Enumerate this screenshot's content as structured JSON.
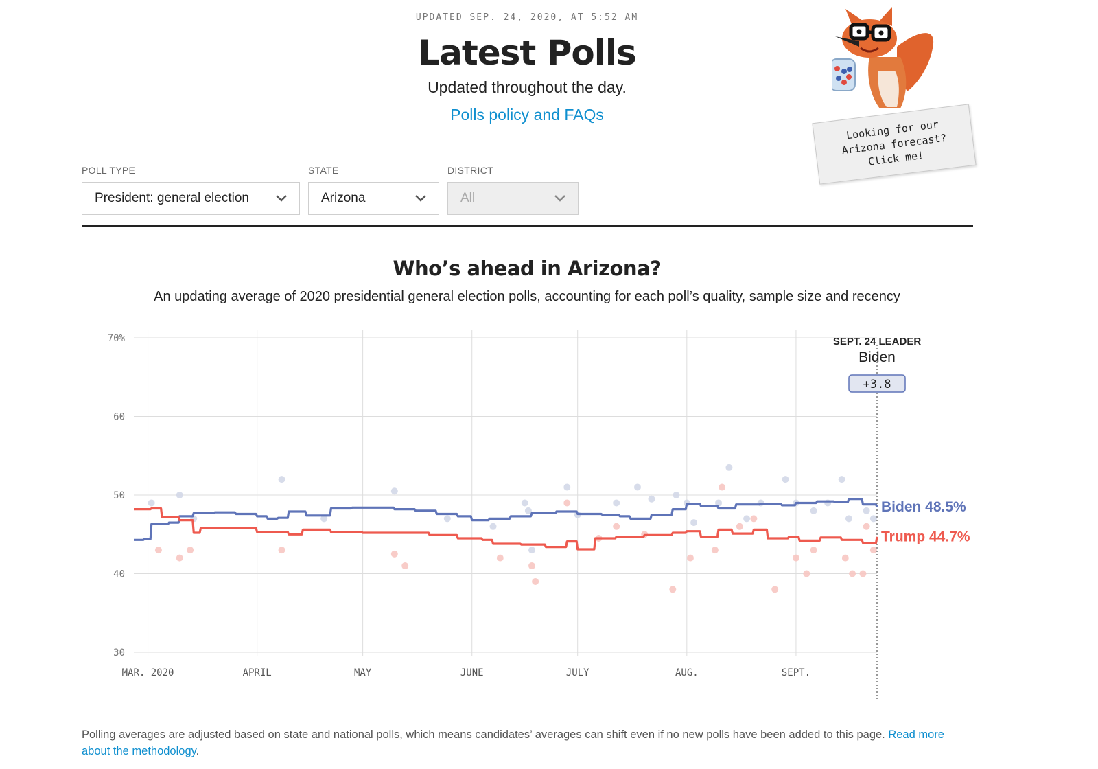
{
  "header": {
    "updated": "UPDATED SEP. 24, 2020, AT 5:52 AM",
    "title": "Latest Polls",
    "subtitle": "Updated throughout the day.",
    "policy_link": "Polls policy and FAQs"
  },
  "promo": {
    "text": "Looking for our\nArizona forecast?\nClick me!",
    "mascot_icon": "fox-mascot-icon"
  },
  "filters": {
    "poll_type": {
      "label": "POLL TYPE",
      "value": "President: general election"
    },
    "state": {
      "label": "STATE",
      "value": "Arizona"
    },
    "district": {
      "label": "DISTRICT",
      "value": "All",
      "disabled": true
    }
  },
  "chart": {
    "title": "Who’s ahead in Arizona?",
    "subtitle": "An updating average of 2020 presidential general election polls, accounting for each poll’s quality, sample size and recency",
    "leader_label": "SEPT. 24 LEADER",
    "leader_name": "Biden",
    "leader_margin": "+3.8"
  },
  "chart_data": {
    "type": "line",
    "x_axis": [
      "MAR. 2020",
      "APRIL",
      "MAY",
      "JUNE",
      "JULY",
      "AUG.",
      "SEPT."
    ],
    "y_axis": [
      "70%",
      "60",
      "50",
      "40",
      "30"
    ],
    "ylim": [
      30,
      70
    ],
    "xlim": [
      "2020-02-26",
      "2020-09-24"
    ],
    "grid": true,
    "series": [
      {
        "name": "Biden",
        "color": "#5f74b8",
        "dot_color": "#d3d8e8",
        "end_label": "Biden 48.5%",
        "points": [
          [
            "2020-02-26",
            44.3
          ],
          [
            "2020-02-29",
            44.4
          ],
          [
            "2020-03-02",
            46.3
          ],
          [
            "2020-03-07",
            46.5
          ],
          [
            "2020-03-10",
            47.3
          ],
          [
            "2020-03-14",
            47.7
          ],
          [
            "2020-03-20",
            47.8
          ],
          [
            "2020-03-26",
            47.6
          ],
          [
            "2020-04-01",
            47.3
          ],
          [
            "2020-04-04",
            47.0
          ],
          [
            "2020-04-07",
            47.1
          ],
          [
            "2020-04-10",
            47.9
          ],
          [
            "2020-04-15",
            47.4
          ],
          [
            "2020-04-22",
            48.3
          ],
          [
            "2020-04-28",
            48.4
          ],
          [
            "2020-05-03",
            48.4
          ],
          [
            "2020-05-10",
            48.2
          ],
          [
            "2020-05-16",
            48.0
          ],
          [
            "2020-05-22",
            47.6
          ],
          [
            "2020-05-28",
            47.3
          ],
          [
            "2020-06-01",
            46.8
          ],
          [
            "2020-06-06",
            47.0
          ],
          [
            "2020-06-12",
            47.3
          ],
          [
            "2020-06-18",
            47.7
          ],
          [
            "2020-06-25",
            47.9
          ],
          [
            "2020-07-01",
            47.6
          ],
          [
            "2020-07-08",
            47.5
          ],
          [
            "2020-07-13",
            47.3
          ],
          [
            "2020-07-16",
            47.0
          ],
          [
            "2020-07-22",
            47.5
          ],
          [
            "2020-07-28",
            48.2
          ],
          [
            "2020-08-01",
            48.9
          ],
          [
            "2020-08-05",
            48.6
          ],
          [
            "2020-08-10",
            48.3
          ],
          [
            "2020-08-15",
            48.8
          ],
          [
            "2020-08-22",
            48.9
          ],
          [
            "2020-08-28",
            48.7
          ],
          [
            "2020-09-01",
            49.0
          ],
          [
            "2020-09-07",
            49.2
          ],
          [
            "2020-09-12",
            49.1
          ],
          [
            "2020-09-16",
            49.5
          ],
          [
            "2020-09-20",
            48.8
          ],
          [
            "2020-09-24",
            48.5
          ]
        ],
        "polls": [
          [
            "2020-03-02",
            49.0
          ],
          [
            "2020-03-10",
            50.0
          ],
          [
            "2020-03-14",
            47.0
          ],
          [
            "2020-04-08",
            52.0
          ],
          [
            "2020-04-20",
            47.0
          ],
          [
            "2020-05-10",
            50.5
          ],
          [
            "2020-05-25",
            47.0
          ],
          [
            "2020-06-07",
            46.0
          ],
          [
            "2020-06-16",
            49.0
          ],
          [
            "2020-06-17",
            48.0
          ],
          [
            "2020-06-18",
            43.0
          ],
          [
            "2020-06-28",
            51.0
          ],
          [
            "2020-07-01",
            47.5
          ],
          [
            "2020-07-12",
            49.0
          ],
          [
            "2020-07-18",
            51.0
          ],
          [
            "2020-07-22",
            49.5
          ],
          [
            "2020-07-29",
            50.0
          ],
          [
            "2020-08-01",
            49.0
          ],
          [
            "2020-08-03",
            46.5
          ],
          [
            "2020-08-10",
            49.0
          ],
          [
            "2020-08-13",
            53.5
          ],
          [
            "2020-08-18",
            47.0
          ],
          [
            "2020-08-22",
            49.0
          ],
          [
            "2020-08-29",
            52.0
          ],
          [
            "2020-09-01",
            49.0
          ],
          [
            "2020-09-06",
            48.0
          ],
          [
            "2020-09-10",
            49.0
          ],
          [
            "2020-09-14",
            52.0
          ],
          [
            "2020-09-16",
            47.0
          ],
          [
            "2020-09-21",
            48.0
          ],
          [
            "2020-09-23",
            47.0
          ]
        ]
      },
      {
        "name": "Trump",
        "color": "#ee5a4f",
        "dot_color": "#f7c6c2",
        "end_label": "Trump 44.7%",
        "points": [
          [
            "2020-02-26",
            48.2
          ],
          [
            "2020-03-02",
            48.3
          ],
          [
            "2020-03-05",
            47.2
          ],
          [
            "2020-03-10",
            46.8
          ],
          [
            "2020-03-14",
            45.2
          ],
          [
            "2020-03-16",
            45.8
          ],
          [
            "2020-03-24",
            45.8
          ],
          [
            "2020-04-01",
            45.3
          ],
          [
            "2020-04-10",
            45.0
          ],
          [
            "2020-04-14",
            45.6
          ],
          [
            "2020-04-22",
            45.3
          ],
          [
            "2020-05-01",
            45.2
          ],
          [
            "2020-05-10",
            45.2
          ],
          [
            "2020-05-20",
            44.9
          ],
          [
            "2020-05-28",
            44.5
          ],
          [
            "2020-06-04",
            44.3
          ],
          [
            "2020-06-07",
            43.8
          ],
          [
            "2020-06-15",
            43.7
          ],
          [
            "2020-06-22",
            43.4
          ],
          [
            "2020-06-28",
            44.1
          ],
          [
            "2020-07-01",
            43.1
          ],
          [
            "2020-07-06",
            44.5
          ],
          [
            "2020-07-12",
            44.7
          ],
          [
            "2020-07-20",
            44.9
          ],
          [
            "2020-07-28",
            45.2
          ],
          [
            "2020-08-01",
            45.4
          ],
          [
            "2020-08-05",
            44.7
          ],
          [
            "2020-08-10",
            45.6
          ],
          [
            "2020-08-14",
            45.1
          ],
          [
            "2020-08-20",
            45.6
          ],
          [
            "2020-08-24",
            44.5
          ],
          [
            "2020-08-30",
            44.7
          ],
          [
            "2020-09-02",
            44.2
          ],
          [
            "2020-09-08",
            44.6
          ],
          [
            "2020-09-14",
            44.3
          ],
          [
            "2020-09-20",
            43.9
          ],
          [
            "2020-09-24",
            44.7
          ]
        ],
        "polls": [
          [
            "2020-03-04",
            43.0
          ],
          [
            "2020-03-10",
            42.0
          ],
          [
            "2020-03-13",
            43.0
          ],
          [
            "2020-04-08",
            43.0
          ],
          [
            "2020-05-10",
            42.5
          ],
          [
            "2020-05-13",
            41.0
          ],
          [
            "2020-06-09",
            42.0
          ],
          [
            "2020-06-18",
            41.0
          ],
          [
            "2020-06-19",
            39.0
          ],
          [
            "2020-06-28",
            49.0
          ],
          [
            "2020-07-07",
            44.5
          ],
          [
            "2020-07-12",
            46.0
          ],
          [
            "2020-07-20",
            45.0
          ],
          [
            "2020-07-28",
            38.0
          ],
          [
            "2020-08-02",
            42.0
          ],
          [
            "2020-08-09",
            43.0
          ],
          [
            "2020-08-11",
            51.0
          ],
          [
            "2020-08-16",
            46.0
          ],
          [
            "2020-08-20",
            47.0
          ],
          [
            "2020-08-26",
            38.0
          ],
          [
            "2020-09-01",
            42.0
          ],
          [
            "2020-09-04",
            40.0
          ],
          [
            "2020-09-06",
            43.0
          ],
          [
            "2020-09-15",
            42.0
          ],
          [
            "2020-09-17",
            40.0
          ],
          [
            "2020-09-20",
            40.0
          ],
          [
            "2020-09-21",
            46.0
          ],
          [
            "2020-09-23",
            43.0
          ]
        ]
      }
    ]
  },
  "footnote": {
    "text": "Polling averages are adjusted based on state and national polls, which means candidates’ averages can shift even if no new polls have been added to this page. ",
    "link": "Read more about the methodology",
    "after": "."
  }
}
